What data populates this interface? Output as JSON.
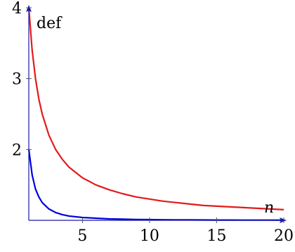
{
  "chart_data": {
    "type": "line",
    "xlabel": "n",
    "ylabel": "def",
    "xlim": [
      1,
      20
    ],
    "ylim": [
      1,
      4
    ],
    "xticks": [
      5,
      10,
      15,
      20
    ],
    "yticks": [
      2,
      3,
      4
    ],
    "grid": false,
    "series": [
      {
        "color": "#e31a1c",
        "x": [
          1,
          1.25,
          1.5,
          1.75,
          2,
          2.5,
          3,
          3.5,
          4,
          5,
          6,
          7,
          8,
          9,
          10,
          11,
          12,
          13,
          14,
          15,
          16,
          17,
          18,
          19,
          20
        ],
        "values": [
          4.0,
          3.4,
          3.0,
          2.71,
          2.5,
          2.2,
          2.0,
          1.86,
          1.75,
          1.6,
          1.5,
          1.43,
          1.375,
          1.33,
          1.3,
          1.27,
          1.25,
          1.23,
          1.21,
          1.2,
          1.19,
          1.18,
          1.17,
          1.16,
          1.15
        ]
      },
      {
        "color": "#0000e0",
        "x": [
          1,
          1.25,
          1.5,
          1.75,
          2,
          2.5,
          3,
          3.5,
          4,
          5,
          6,
          7,
          8,
          9,
          10,
          11,
          12,
          13,
          14,
          15,
          16,
          17,
          18,
          19,
          20
        ],
        "values": [
          2.0,
          1.64,
          1.44,
          1.33,
          1.25,
          1.16,
          1.11,
          1.08,
          1.06,
          1.04,
          1.03,
          1.02,
          1.016,
          1.012,
          1.01,
          1.008,
          1.007,
          1.006,
          1.005,
          1.004,
          1.004,
          1.003,
          1.003,
          1.003,
          1.0025
        ]
      }
    ]
  }
}
